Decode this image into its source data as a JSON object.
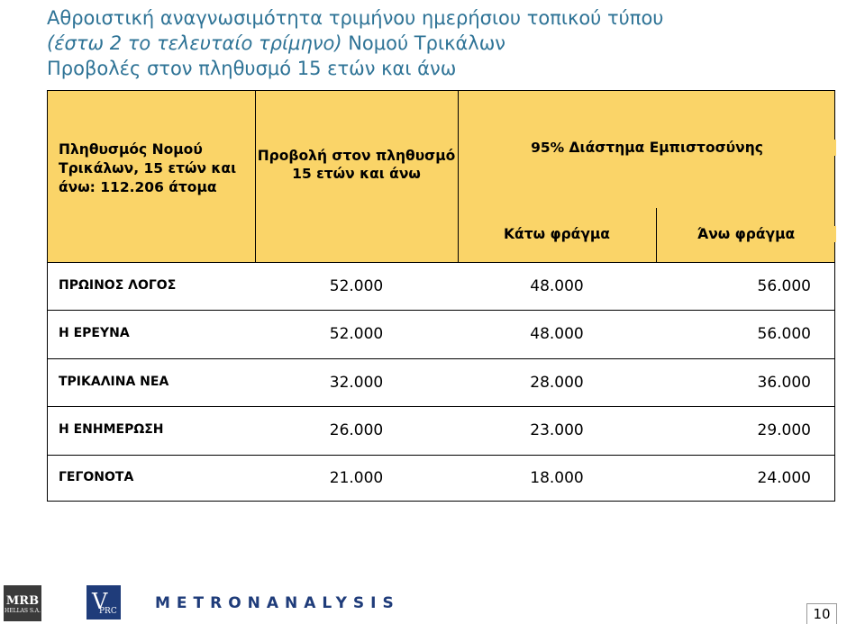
{
  "header": {
    "title_lines": [
      "Αθροιστική αναγνωσιμότητα τριμήνου ημερήσιου τοπικού τύπου",
      "Προβολές στον πληθυσμό 15 ετών και άνω"
    ],
    "subtitle_italic": "(έστω 2 το τελευταίο τρίμηνο)",
    "subtitle_normal": "Νομού Τρικάλων"
  },
  "table": {
    "col_headers": [
      "Πληθυσμός Νομού Τρικάλων, 15 ετών και άνω: 112.206 άτομα",
      "Προβολή στον πληθυσμό 15 ετών και άνω",
      "95% Διάστημα Εμπιστοσύνης"
    ],
    "sub_headers": [
      "Κάτω φράγμα",
      "Άνω φράγμα"
    ],
    "rows": [
      [
        "ΠΡΩΙΝΟΣ ΛΟΓΟΣ",
        "52.000",
        "48.000",
        "56.000"
      ],
      [
        "Η ΕΡΕΥΝΑ",
        "52.000",
        "48.000",
        "56.000"
      ],
      [
        "ΤΡΙΚΑΛΙΝΑ ΝΕΑ",
        "32.000",
        "28.000",
        "36.000"
      ],
      [
        "Η ΕΝΗΜΕΡΩΣΗ",
        "26.000",
        "23.000",
        "29.000"
      ],
      [
        "ΓΕΓΟΝΟΤΑ",
        "21.000",
        "18.000",
        "24.000"
      ]
    ]
  },
  "footer": {
    "logos": [
      "MRB",
      "HELLAS S.A.",
      "V",
      "PRC",
      "METRONANALYSIS"
    ],
    "page_number": "10"
  }
}
